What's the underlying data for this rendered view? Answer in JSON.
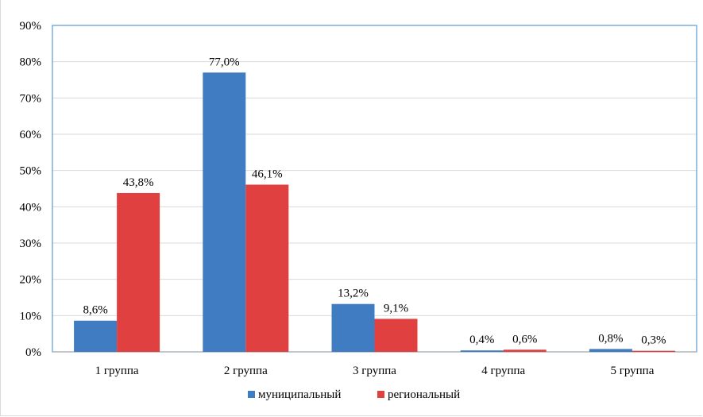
{
  "chart_data": {
    "type": "bar",
    "categories": [
      "1 группа",
      "2 группа",
      "3 группа",
      "4 группа",
      "5 группа"
    ],
    "series": [
      {
        "name": "муниципальный",
        "color": "#3f7cc2",
        "values": [
          8.6,
          77.0,
          13.2,
          0.4,
          0.8
        ],
        "labels": [
          "8,6%",
          "77,0%",
          "13,2%",
          "0,4%",
          "0,8%"
        ]
      },
      {
        "name": "региональный",
        "color": "#e0403f",
        "values": [
          43.8,
          46.1,
          9.1,
          0.6,
          0.3
        ],
        "labels": [
          "43,8%",
          "46,1%",
          "9,1%",
          "0,6%",
          "0,3%"
        ]
      }
    ],
    "ylim": [
      0,
      90
    ],
    "yticks": [
      "0%",
      "10%",
      "20%",
      "30%",
      "40%",
      "50%",
      "60%",
      "70%",
      "80%",
      "90%"
    ],
    "grid": true,
    "legend_position": "bottom",
    "title": "",
    "xlabel": "",
    "ylabel": ""
  },
  "colors": {
    "plot_border": "#5b9bd5",
    "grid": "#d9d9d9"
  }
}
